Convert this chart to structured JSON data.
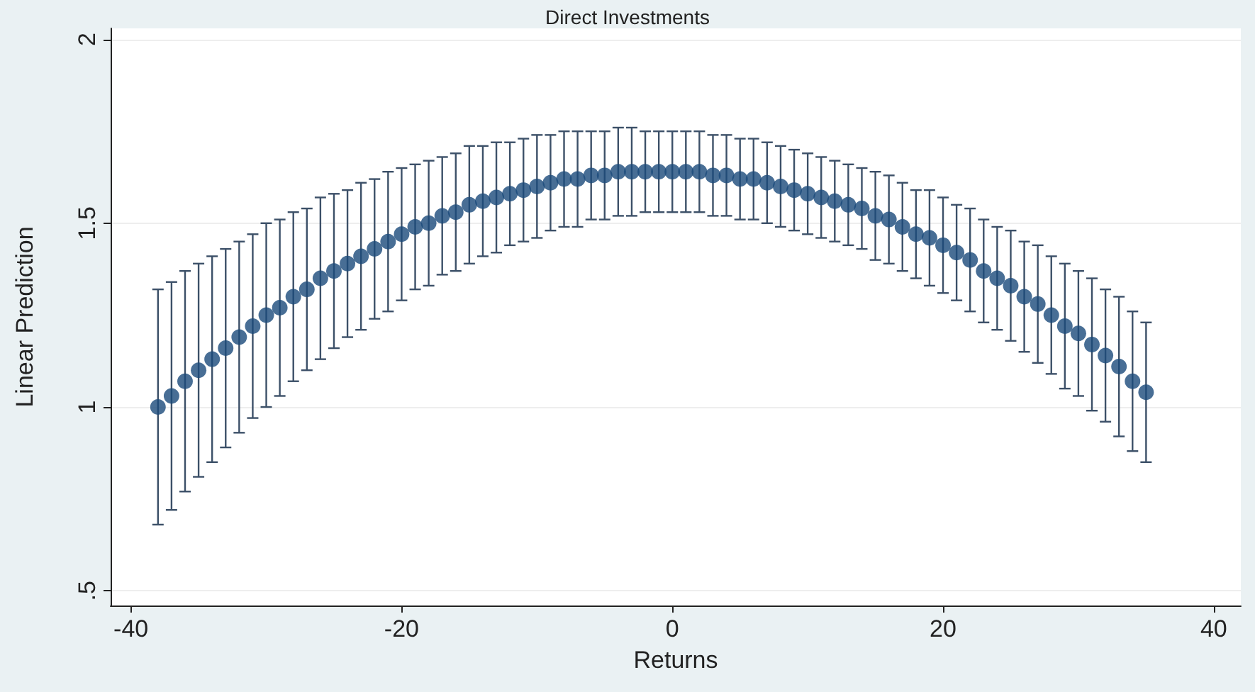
{
  "chart_data": {
    "type": "scatter",
    "title": "Direct Investments",
    "xlabel": "Returns",
    "ylabel": "Linear Prediction",
    "x": [
      -38,
      -37,
      -36,
      -35,
      -34,
      -33,
      -32,
      -31,
      -30,
      -29,
      -28,
      -27,
      -26,
      -25,
      -24,
      -23,
      -22,
      -21,
      -20,
      -19,
      -18,
      -17,
      -16,
      -15,
      -14,
      -13,
      -12,
      -11,
      -10,
      -9,
      -8,
      -7,
      -6,
      -5,
      -4,
      -3,
      -2,
      -1,
      0,
      1,
      2,
      3,
      4,
      5,
      6,
      7,
      8,
      9,
      10,
      11,
      12,
      13,
      14,
      15,
      16,
      17,
      18,
      19,
      20,
      21,
      22,
      23,
      24,
      25,
      26,
      27,
      28,
      29,
      30,
      31,
      32,
      33,
      34,
      35
    ],
    "values": [
      1.0,
      1.03,
      1.07,
      1.1,
      1.13,
      1.16,
      1.19,
      1.22,
      1.25,
      1.27,
      1.3,
      1.32,
      1.35,
      1.37,
      1.39,
      1.41,
      1.43,
      1.45,
      1.47,
      1.49,
      1.5,
      1.52,
      1.53,
      1.55,
      1.56,
      1.57,
      1.58,
      1.59,
      1.6,
      1.61,
      1.62,
      1.62,
      1.63,
      1.63,
      1.64,
      1.64,
      1.64,
      1.64,
      1.64,
      1.64,
      1.64,
      1.63,
      1.63,
      1.62,
      1.62,
      1.61,
      1.6,
      1.59,
      1.58,
      1.57,
      1.56,
      1.55,
      1.54,
      1.52,
      1.51,
      1.49,
      1.47,
      1.46,
      1.44,
      1.42,
      1.4,
      1.37,
      1.35,
      1.33,
      1.3,
      1.28,
      1.25,
      1.22,
      1.2,
      1.17,
      1.14,
      1.11,
      1.07,
      1.04
    ],
    "errors": [
      0.32,
      0.31,
      0.3,
      0.29,
      0.28,
      0.27,
      0.26,
      0.25,
      0.25,
      0.24,
      0.23,
      0.22,
      0.22,
      0.21,
      0.2,
      0.2,
      0.19,
      0.19,
      0.18,
      0.17,
      0.17,
      0.16,
      0.16,
      0.16,
      0.15,
      0.15,
      0.14,
      0.14,
      0.14,
      0.13,
      0.13,
      0.13,
      0.12,
      0.12,
      0.12,
      0.12,
      0.11,
      0.11,
      0.11,
      0.11,
      0.11,
      0.11,
      0.11,
      0.11,
      0.11,
      0.11,
      0.11,
      0.11,
      0.11,
      0.11,
      0.11,
      0.11,
      0.11,
      0.12,
      0.12,
      0.12,
      0.12,
      0.13,
      0.13,
      0.13,
      0.14,
      0.14,
      0.14,
      0.15,
      0.15,
      0.16,
      0.16,
      0.17,
      0.17,
      0.18,
      0.18,
      0.19,
      0.19,
      0.19
    ],
    "color": "#1a4a7a",
    "marker": "circle",
    "xlim": [
      -41.5,
      42
    ],
    "xticks": [
      -40,
      -20,
      0,
      20,
      40
    ],
    "ylim": [
      0.46,
      2.03
    ],
    "yticks": [
      {
        "value": 0.5,
        "label": ".5"
      },
      1,
      1.5,
      2
    ],
    "grid": "y"
  }
}
